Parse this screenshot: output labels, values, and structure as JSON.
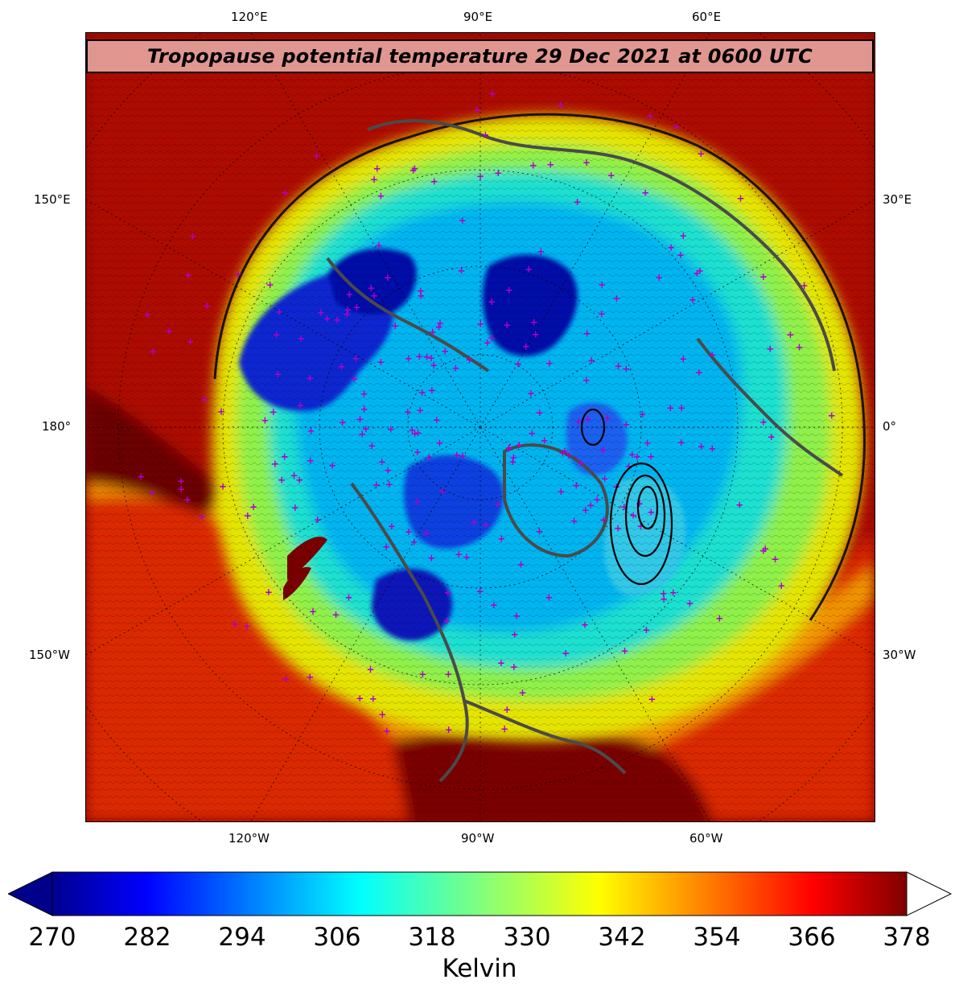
{
  "title": "Tropopause potential temperature 29 Dec 2021 at 0600 UTC",
  "map": {
    "projection": "north-polar-stereographic",
    "field": "tropopause potential temperature",
    "overlays": [
      "filled-contours",
      "thin-black-contour-lines",
      "coastlines",
      "country-borders",
      "lat-lon-gridlines",
      "station-markers"
    ],
    "station_marker_color": "#b000c8",
    "coastline_color": "#4a4a4a",
    "top_labels": [
      "120°E",
      "90°E",
      "60°E"
    ],
    "bottom_labels": [
      "120°W",
      "90°W",
      "60°W"
    ],
    "left_labels": [
      "150°E",
      "180°",
      "150°W"
    ],
    "right_labels": [
      "30°E",
      "0°",
      "30°W"
    ]
  },
  "colorbar": {
    "min": 270,
    "max": 378,
    "extend": "both",
    "colormap": "jet",
    "ticks": [
      "270",
      "282",
      "294",
      "306",
      "318",
      "330",
      "342",
      "354",
      "366",
      "378"
    ],
    "label": "Kelvin",
    "under_color": "#00008b",
    "over_color": "#ffffff"
  }
}
